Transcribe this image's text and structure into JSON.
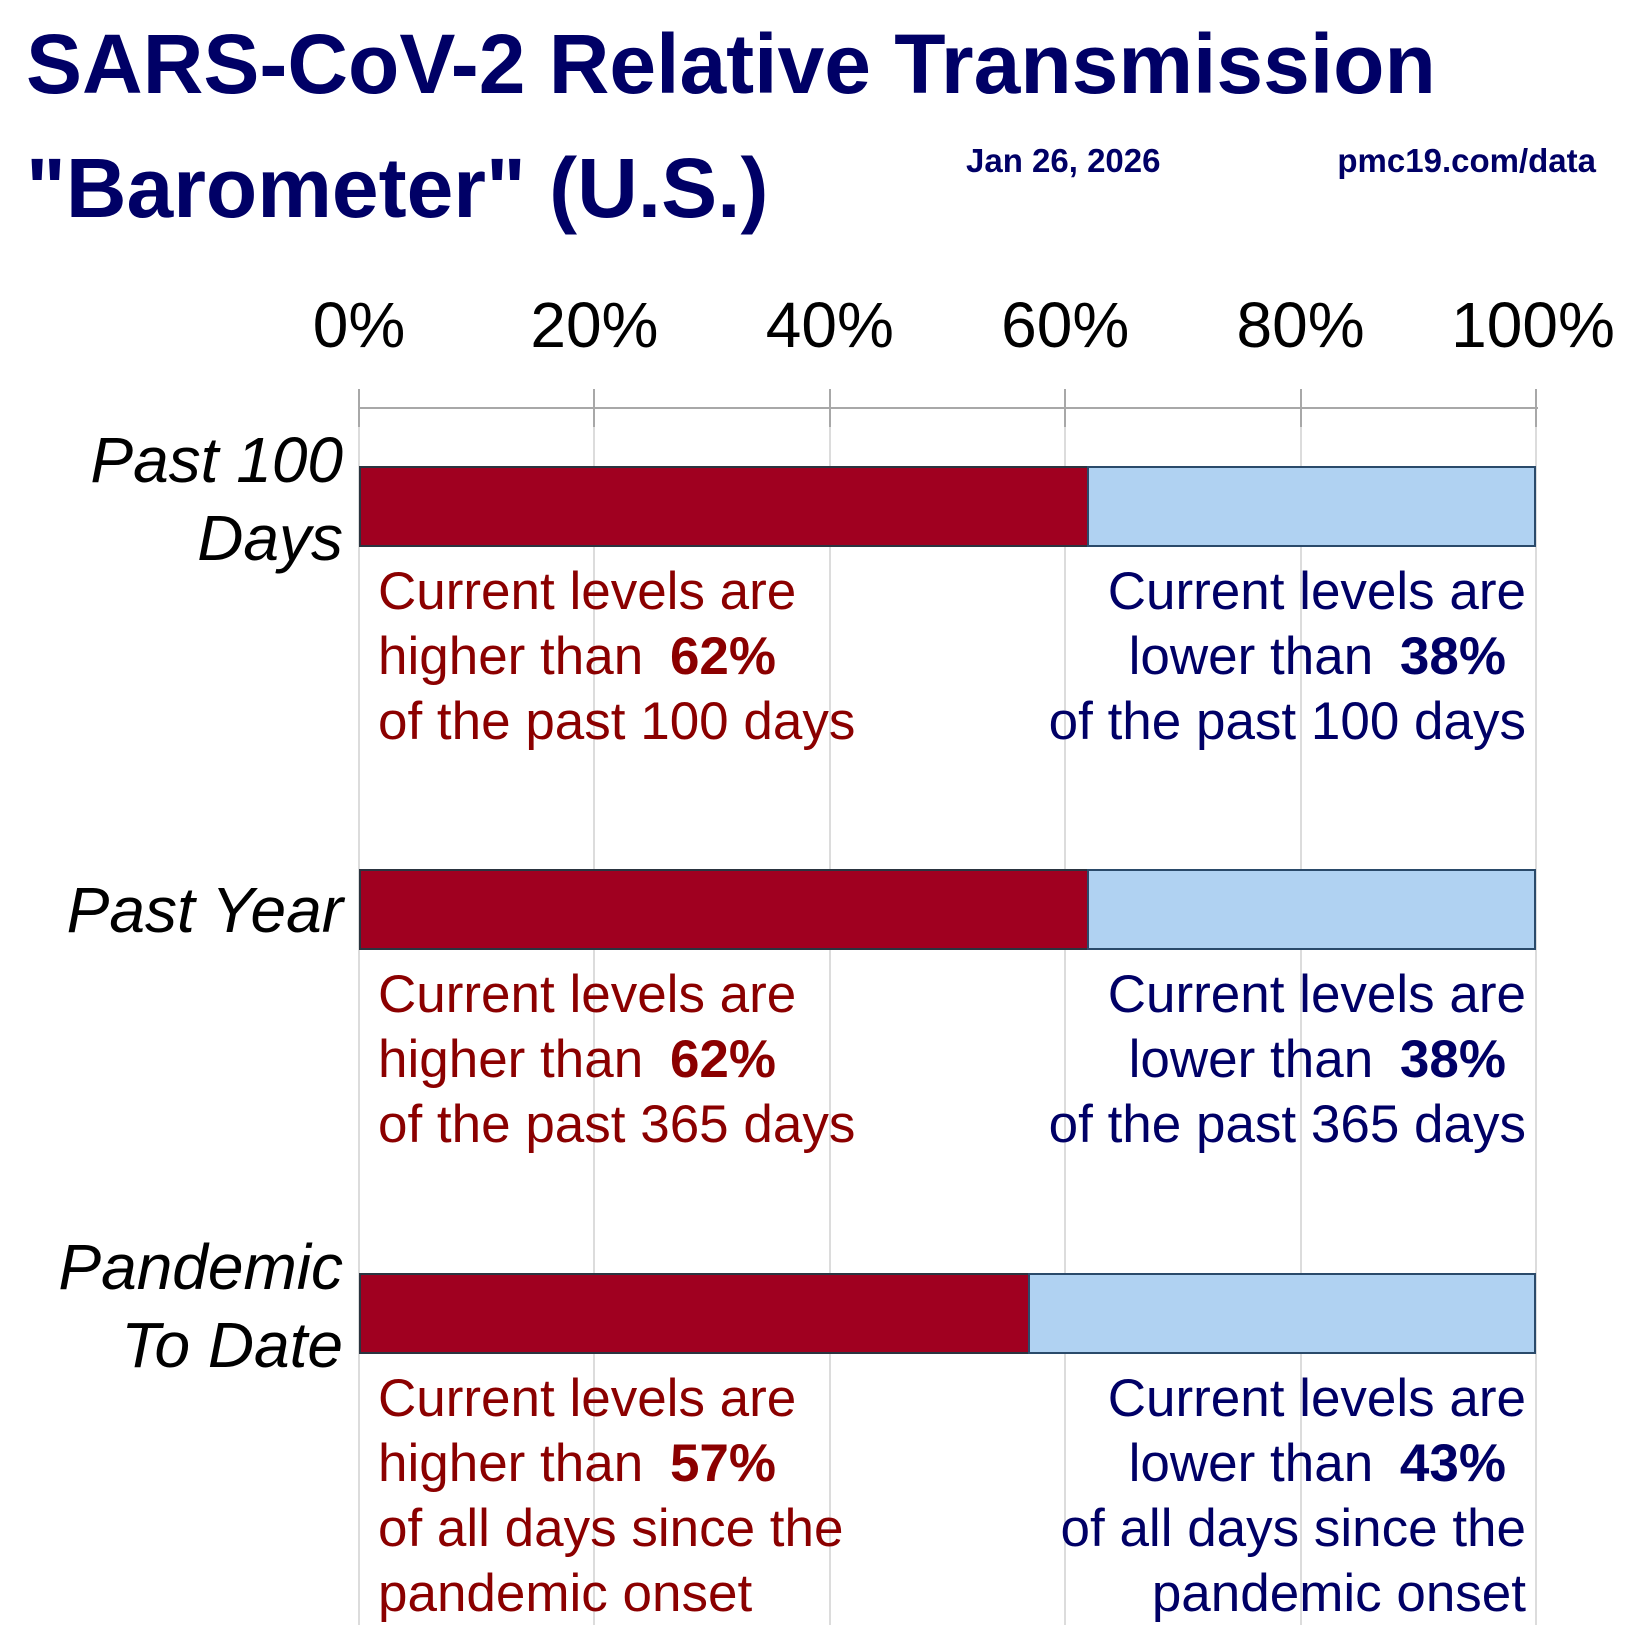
{
  "colors": {
    "higher": "#a00020",
    "lower": "#b0d2f2",
    "higher_text": "#8b0000",
    "lower_text": "#000066"
  },
  "chart_data": {
    "type": "bar",
    "stacked": true,
    "orientation": "horizontal",
    "title": "SARS-CoV-2 Relative Transmission",
    "subtitle": "\"Barometer\" (U.S.)",
    "date": "Jan 26, 2026",
    "source": "pmc19.com/data",
    "xlim": [
      0,
      100
    ],
    "x_ticks": [
      "0%",
      "20%",
      "40%",
      "60%",
      "80%",
      "100%"
    ],
    "categories": [
      "Past 100 Days",
      "Past Year",
      "Pandemic To Date"
    ],
    "category_lines": [
      [
        "Past 100",
        "Days"
      ],
      [
        "Past Year"
      ],
      [
        "Pandemic",
        "To Date"
      ]
    ],
    "series": [
      {
        "name": "higher",
        "values": [
          62,
          62,
          57
        ]
      },
      {
        "name": "lower",
        "values": [
          38,
          38,
          43
        ]
      }
    ],
    "annotations": [
      {
        "left": {
          "l1": "Current levels are",
          "l2": "higher than ",
          "pct": "62%",
          "l3": "of the past 100 days",
          "l4": ""
        },
        "right": {
          "l1": "Current levels are",
          "l2": "lower than ",
          "pct": "38%",
          "l3": "of the past 100 days",
          "l4": ""
        }
      },
      {
        "left": {
          "l1": "Current levels are",
          "l2": "higher than ",
          "pct": "62%",
          "l3": "of the past 365 days",
          "l4": ""
        },
        "right": {
          "l1": "Current levels are",
          "l2": "lower than ",
          "pct": "38%",
          "l3": "of the past 365 days",
          "l4": ""
        }
      },
      {
        "left": {
          "l1": "Current levels are",
          "l2": "higher than ",
          "pct": "57%",
          "l3": "of all days since the",
          "l4": "pandemic onset"
        },
        "right": {
          "l1": "Current levels are",
          "l2": "lower than ",
          "pct": "43%",
          "l3": "of all days since the",
          "l4": "pandemic onset"
        }
      }
    ]
  }
}
